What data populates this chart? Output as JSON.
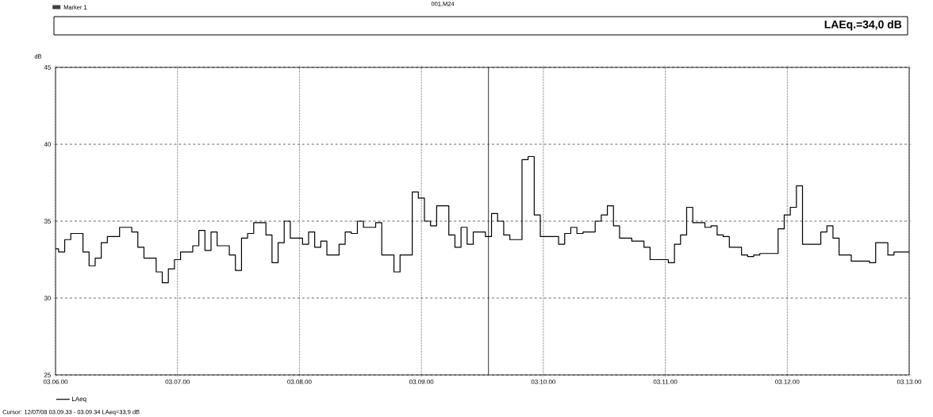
{
  "chart_data": {
    "type": "step",
    "title": "001.M24",
    "ylabel": "dB",
    "annotations": [
      "Marker 1",
      "LAEq.=34,0 dB",
      "Cursor: 12/07/08 03.09.33 - 03.09.34  LAeq=33,9 dB"
    ],
    "categories": [
      "03.06.00",
      null,
      null,
      null,
      null,
      null,
      null,
      null,
      null,
      null,
      null,
      null,
      null,
      null,
      null,
      null,
      null,
      null,
      null,
      null,
      "03.07.00",
      null,
      null,
      null,
      null,
      null,
      null,
      null,
      null,
      null,
      null,
      null,
      null,
      null,
      null,
      null,
      null,
      null,
      null,
      null,
      "03.08.00",
      null,
      null,
      null,
      null,
      null,
      null,
      null,
      null,
      null,
      null,
      null,
      null,
      null,
      null,
      null,
      null,
      null,
      null,
      null,
      "03.09.00",
      null,
      null,
      null,
      null,
      null,
      null,
      null,
      null,
      null,
      null,
      null,
      null,
      null,
      null,
      null,
      null,
      null,
      null,
      null,
      "03.10.00",
      null,
      null,
      null,
      null,
      null,
      null,
      null,
      null,
      null,
      null,
      null,
      null,
      null,
      null,
      null,
      null,
      null,
      null,
      null,
      "03.11.00",
      null,
      null,
      null,
      null,
      null,
      null,
      null,
      null,
      null,
      null,
      null,
      null,
      null,
      null,
      null,
      null,
      null,
      null,
      null,
      "03.12.00",
      null,
      null,
      null,
      null,
      null,
      null,
      null,
      null,
      null,
      null,
      null,
      null,
      null,
      null,
      null,
      null,
      null,
      null,
      null,
      "03.13.00"
    ],
    "series": [
      {
        "name": "LAeq",
        "color": "#000000",
        "values": [
          33.2,
          33.0,
          33.8,
          34.2,
          34.2,
          33.0,
          32.1,
          32.6,
          33.6,
          34.0,
          34.0,
          34.6,
          34.6,
          34.3,
          33.3,
          32.6,
          32.6,
          31.7,
          31.0,
          31.9,
          32.5,
          33.0,
          33.0,
          33.4,
          34.4,
          33.1,
          34.3,
          33.4,
          33.4,
          32.8,
          31.8,
          33.9,
          34.2,
          34.9,
          34.9,
          34.1,
          32.3,
          33.6,
          35.0,
          33.9,
          33.9,
          33.5,
          34.3,
          33.3,
          33.7,
          32.8,
          32.8,
          33.5,
          34.3,
          34.2,
          35.0,
          34.6,
          34.6,
          34.9,
          32.8,
          32.8,
          31.7,
          32.8,
          32.8,
          36.9,
          36.5,
          35.0,
          34.7,
          36.0,
          36.0,
          34.1,
          33.3,
          34.6,
          33.5,
          34.3,
          34.3,
          34.0,
          35.5,
          35.0,
          34.1,
          33.8,
          33.8,
          39.0,
          39.2,
          35.4,
          34.0,
          34.0,
          34.0,
          33.5,
          34.2,
          34.6,
          34.2,
          34.3,
          34.3,
          35.0,
          35.4,
          36.0,
          34.7,
          33.9,
          33.9,
          33.7,
          33.7,
          33.3,
          32.5,
          32.5,
          32.5,
          32.3,
          33.5,
          34.1,
          35.9,
          34.9,
          34.9,
          34.6,
          34.7,
          34.1,
          34.0,
          33.3,
          33.3,
          32.8,
          32.7,
          32.8,
          32.9,
          32.9,
          32.9,
          34.5,
          35.4,
          35.9,
          37.3,
          33.5,
          33.5,
          33.5,
          34.3,
          34.7,
          33.9,
          32.8,
          32.8,
          32.4,
          32.4,
          32.4,
          32.3,
          33.6,
          33.6,
          32.8,
          33.0,
          33.0,
          33.0
        ]
      }
    ],
    "ylim": [
      25,
      45
    ],
    "yticks": [
      25,
      30,
      35,
      40,
      45
    ],
    "grid": true,
    "legend": "bottom left"
  }
}
